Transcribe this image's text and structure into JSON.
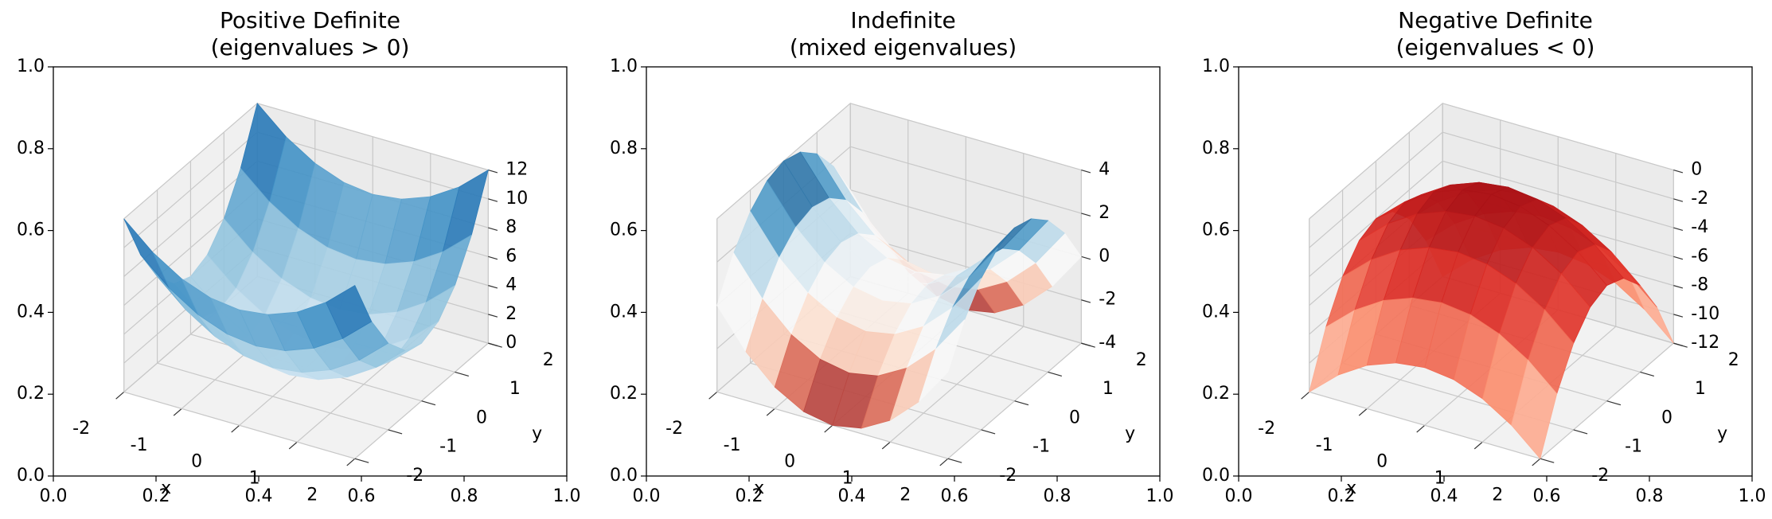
{
  "chart_data": [
    {
      "type": "surface",
      "title": "Positive Definite",
      "subtitle": "(eigenvalues > 0)",
      "frame": {
        "xlim": [
          0,
          1
        ],
        "ylim": [
          0,
          1
        ],
        "xticks": [
          {
            "value": 0,
            "label": "0.0"
          },
          {
            "value": 0.2,
            "label": "0.2"
          },
          {
            "value": 0.4,
            "label": "0.4"
          },
          {
            "value": 0.6,
            "label": "0.6"
          },
          {
            "value": 0.8,
            "label": "0.8"
          },
          {
            "value": 1,
            "label": "1.0"
          }
        ],
        "yticks": [
          {
            "value": 0,
            "label": "0.0"
          },
          {
            "value": 0.2,
            "label": "0.2"
          },
          {
            "value": 0.4,
            "label": "0.4"
          },
          {
            "value": 0.6,
            "label": "0.6"
          },
          {
            "value": 0.8,
            "label": "0.8"
          },
          {
            "value": 1,
            "label": "1.0"
          }
        ]
      },
      "xlabel": "x",
      "ylabel": "y",
      "xlim": [
        -2,
        2
      ],
      "ylim": [
        -2,
        2
      ],
      "zlim": [
        0,
        12
      ],
      "xticks": [
        -2,
        -1,
        0,
        1,
        2
      ],
      "yticks": [
        -2,
        -1,
        0,
        1,
        2
      ],
      "zticks": [
        0,
        2,
        4,
        6,
        8,
        10,
        12
      ],
      "colormap": [
        "#deebf7",
        "#9ecae1",
        "#4292c6",
        "#08519c"
      ],
      "x": [
        -2,
        -1.5,
        -1,
        -0.5,
        0,
        0.5,
        1,
        1.5,
        2
      ],
      "y": [
        -2,
        -1.5,
        -1,
        -0.5,
        0,
        0.5,
        1,
        1.5,
        2
      ],
      "z": [
        [
          12,
          10.25,
          9,
          8.25,
          8,
          8.25,
          9,
          10.25,
          12
        ],
        [
          8.5,
          6.75,
          5.5,
          4.75,
          4.5,
          4.75,
          5.5,
          6.75,
          8.5
        ],
        [
          6,
          4.25,
          3,
          2.25,
          2,
          2.25,
          3,
          4.25,
          6
        ],
        [
          4.5,
          2.75,
          1.5,
          0.75,
          0.5,
          0.75,
          1.5,
          2.75,
          4.5
        ],
        [
          4,
          2.25,
          1,
          0.25,
          0,
          0.25,
          1,
          2.25,
          4
        ],
        [
          4.5,
          2.75,
          1.5,
          0.75,
          0.5,
          0.75,
          1.5,
          2.75,
          4.5
        ],
        [
          6,
          4.25,
          3,
          2.25,
          2,
          2.25,
          3,
          4.25,
          6
        ],
        [
          8.5,
          6.75,
          5.5,
          4.75,
          4.5,
          4.75,
          5.5,
          6.75,
          8.5
        ],
        [
          12,
          10.25,
          9,
          8.25,
          8,
          8.25,
          9,
          10.25,
          12
        ]
      ]
    },
    {
      "type": "surface",
      "title": "Indefinite",
      "subtitle": "(mixed eigenvalues)",
      "frame": {
        "xlim": [
          0,
          1
        ],
        "ylim": [
          0,
          1
        ],
        "xticks": [
          {
            "value": 0,
            "label": "0.0"
          },
          {
            "value": 0.2,
            "label": "0.2"
          },
          {
            "value": 0.4,
            "label": "0.4"
          },
          {
            "value": 0.6,
            "label": "0.6"
          },
          {
            "value": 0.8,
            "label": "0.8"
          },
          {
            "value": 1,
            "label": "1.0"
          }
        ],
        "yticks": [
          {
            "value": 0,
            "label": "0.0"
          },
          {
            "value": 0.2,
            "label": "0.2"
          },
          {
            "value": 0.4,
            "label": "0.4"
          },
          {
            "value": 0.6,
            "label": "0.6"
          },
          {
            "value": 0.8,
            "label": "0.8"
          },
          {
            "value": 1,
            "label": "1.0"
          }
        ]
      },
      "xlabel": "x",
      "ylabel": "y",
      "xlim": [
        -2,
        2
      ],
      "ylim": [
        -2,
        2
      ],
      "zlim": [
        -4,
        4
      ],
      "xticks": [
        -2,
        -1,
        0,
        1,
        2
      ],
      "yticks": [
        -2,
        -1,
        0,
        1,
        2
      ],
      "zticks": [
        -4,
        -2,
        0,
        2,
        4
      ],
      "colormap": [
        "#67001f",
        "#d6604d",
        "#fddbc7",
        "#f7f7f7",
        "#d1e5f0",
        "#4393c3",
        "#053061"
      ],
      "x": [
        -2,
        -1.5,
        -1,
        -0.5,
        0,
        0.5,
        1,
        1.5,
        2
      ],
      "y": [
        -2,
        -1.5,
        -1,
        -0.5,
        0,
        0.5,
        1,
        1.5,
        2
      ],
      "z": [
        [
          0,
          -1.75,
          -3,
          -3.75,
          -4,
          -3.75,
          -3,
          -1.75,
          0
        ],
        [
          1.75,
          0,
          -1.25,
          -2,
          -2.25,
          -2,
          -1.25,
          0,
          1.75
        ],
        [
          3,
          1.25,
          0,
          -0.75,
          -1,
          -0.75,
          0,
          1.25,
          3
        ],
        [
          3.75,
          2,
          0.75,
          0,
          -0.25,
          0,
          0.75,
          2,
          3.75
        ],
        [
          4,
          2.25,
          1,
          0.25,
          0,
          0.25,
          1,
          2.25,
          4
        ],
        [
          3.75,
          2,
          0.75,
          0,
          -0.25,
          0,
          0.75,
          2,
          3.75
        ],
        [
          3,
          1.25,
          0,
          -0.75,
          -1,
          -0.75,
          0,
          1.25,
          3
        ],
        [
          1.75,
          0,
          -1.25,
          -2,
          -2.25,
          -2,
          -1.25,
          0,
          1.75
        ],
        [
          0,
          -1.75,
          -3,
          -3.75,
          -4,
          -3.75,
          -3,
          -1.75,
          0
        ]
      ]
    },
    {
      "type": "surface",
      "title": "Negative Definite",
      "subtitle": "(eigenvalues < 0)",
      "frame": {
        "xlim": [
          0,
          1
        ],
        "ylim": [
          0,
          1
        ],
        "xticks": [
          {
            "value": 0,
            "label": "0.0"
          },
          {
            "value": 0.2,
            "label": "0.2"
          },
          {
            "value": 0.4,
            "label": "0.4"
          },
          {
            "value": 0.6,
            "label": "0.6"
          },
          {
            "value": 0.8,
            "label": "0.8"
          },
          {
            "value": 1,
            "label": "1.0"
          }
        ],
        "yticks": [
          {
            "value": 0,
            "label": "0.0"
          },
          {
            "value": 0.2,
            "label": "0.2"
          },
          {
            "value": 0.4,
            "label": "0.4"
          },
          {
            "value": 0.6,
            "label": "0.6"
          },
          {
            "value": 0.8,
            "label": "0.8"
          },
          {
            "value": 1,
            "label": "1.0"
          }
        ]
      },
      "xlabel": "x",
      "ylabel": "y",
      "xlim": [
        -2,
        2
      ],
      "ylim": [
        -2,
        2
      ],
      "zlim": [
        -12,
        0
      ],
      "xticks": [
        -2,
        -1,
        0,
        1,
        2
      ],
      "yticks": [
        -2,
        -1,
        0,
        1,
        2
      ],
      "zticks": [
        -12,
        -10,
        -8,
        -6,
        -4,
        -2,
        0
      ],
      "colormap": [
        "#fee0d2",
        "#fc9272",
        "#de2d26",
        "#a50f15"
      ],
      "x": [
        -2,
        -1.5,
        -1,
        -0.5,
        0,
        0.5,
        1,
        1.5,
        2
      ],
      "y": [
        -2,
        -1.5,
        -1,
        -0.5,
        0,
        0.5,
        1,
        1.5,
        2
      ],
      "z": [
        [
          -12,
          -10.25,
          -9,
          -8.25,
          -8,
          -8.25,
          -9,
          -10.25,
          -12
        ],
        [
          -8.5,
          -6.75,
          -5.5,
          -4.75,
          -4.5,
          -4.75,
          -5.5,
          -6.75,
          -8.5
        ],
        [
          -6,
          -4.25,
          -3,
          -2.25,
          -2,
          -2.25,
          -3,
          -4.25,
          -6
        ],
        [
          -4.5,
          -2.75,
          -1.5,
          -0.75,
          -0.5,
          -0.75,
          -1.5,
          -2.75,
          -4.5
        ],
        [
          -4,
          -2.25,
          -1,
          -0.25,
          0,
          -0.25,
          -1,
          -2.25,
          -4
        ],
        [
          -4.5,
          -2.75,
          -1.5,
          -0.75,
          -0.5,
          -0.75,
          -1.5,
          -2.75,
          -4.5
        ],
        [
          -6,
          -4.25,
          -3,
          -2.25,
          -2,
          -2.25,
          -3,
          -4.25,
          -6
        ],
        [
          -8.5,
          -6.75,
          -5.5,
          -4.75,
          -4.5,
          -4.75,
          -5.5,
          -6.75,
          -8.5
        ],
        [
          -12,
          -10.25,
          -9,
          -8.25,
          -8,
          -8.25,
          -9,
          -10.25,
          -12
        ]
      ]
    }
  ]
}
